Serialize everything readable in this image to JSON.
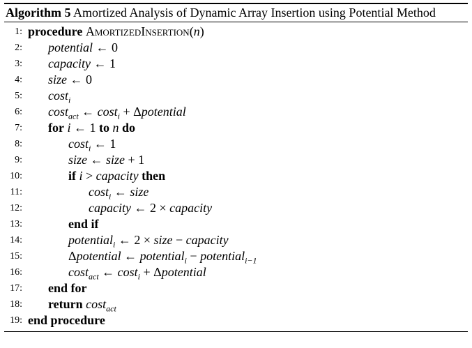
{
  "caption": {
    "label": "Algorithm 5",
    "text": " Amortized Analysis of Dynamic Array Insertion using Potential Method"
  },
  "lines": [
    {
      "n": "1:",
      "indent": 0,
      "kw1": "procedure",
      "rest": " AmortizedInsertion(n)"
    },
    {
      "n": "2:",
      "indent": 1,
      "text": "potential ← 0"
    },
    {
      "n": "3:",
      "indent": 1,
      "text": "capacity ← 1"
    },
    {
      "n": "4:",
      "indent": 1,
      "text": "size ← 0"
    },
    {
      "n": "5:",
      "indent": 1,
      "text": "cost_i"
    },
    {
      "n": "6:",
      "indent": 1,
      "text": "cost_act ← cost_i + Δpotential"
    },
    {
      "n": "7:",
      "indent": 1,
      "text": "for i ← 1 to n do"
    },
    {
      "n": "8:",
      "indent": 2,
      "text": "cost_i ← 1"
    },
    {
      "n": "9:",
      "indent": 2,
      "text": "size ← size + 1"
    },
    {
      "n": "10:",
      "indent": 2,
      "text": "if i > capacity then"
    },
    {
      "n": "11:",
      "indent": 3,
      "text": "cost_i ← size"
    },
    {
      "n": "12:",
      "indent": 3,
      "text": "capacity ← 2 × capacity"
    },
    {
      "n": "13:",
      "indent": 2,
      "text": "end if"
    },
    {
      "n": "14:",
      "indent": 2,
      "text": "potential_i ← 2 × size − capacity"
    },
    {
      "n": "15:",
      "indent": 2,
      "text": "Δpotential ← potential_i − potential_{i−1}"
    },
    {
      "n": "16:",
      "indent": 2,
      "text": "cost_act ← cost_i + Δpotential"
    },
    {
      "n": "17:",
      "indent": 1,
      "text": "end for"
    },
    {
      "n": "18:",
      "indent": 1,
      "text": "return cost_act"
    },
    {
      "n": "19:",
      "indent": 0,
      "text": "end procedure"
    }
  ],
  "tokens": {
    "procedure": "procedure",
    "proc_name": "AmortizedInsertion",
    "n": "n",
    "potential": "potential",
    "capacity": "capacity",
    "size": "size",
    "cost": "cost",
    "sub_i": "i",
    "sub_act": "act",
    "sub_im1": "i−1",
    "arrow": "←",
    "zero": "0",
    "one": "1",
    "two": "2",
    "plus": "+",
    "minus": "−",
    "times": "×",
    "gt": ">",
    "delta": "Δ",
    "kw_for": "for",
    "kw_to": "to",
    "kw_do": "do",
    "kw_if": "if",
    "kw_then": "then",
    "kw_end_if": "end if",
    "kw_end_for": "end for",
    "kw_return": "return",
    "kw_end_procedure": "end procedure",
    "i": "i"
  }
}
